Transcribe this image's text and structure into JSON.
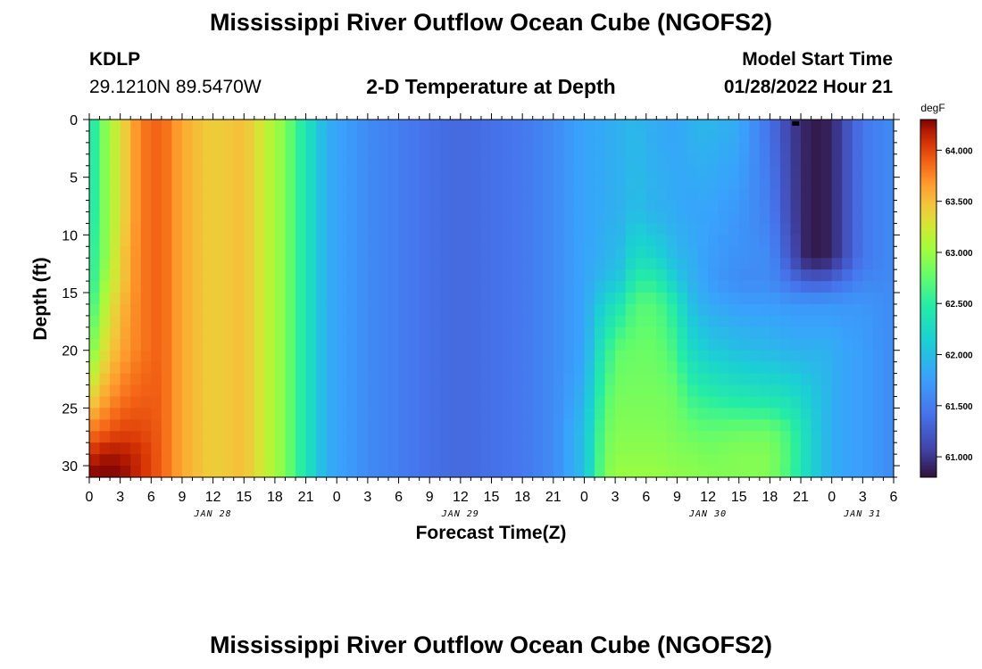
{
  "page": {
    "title": "Mississippi River Outflow Ocean Cube (NGOFS2)",
    "title_repeat": "Mississippi River Outflow Ocean Cube (NGOFS2)",
    "station_id": "KDLP",
    "station_coords": "29.1210N  89.5470W",
    "subtitle": "2-D Temperature at Depth",
    "model_start_label": "Model Start Time",
    "model_start_value": "01/28/2022 Hour 21"
  },
  "chart_data": {
    "type": "heatmap",
    "title": "2-D Temperature at Depth",
    "xlabel": "Forecast Time(Z)",
    "ylabel": "Depth (ft)",
    "colorbar_unit": "degF",
    "x_range_hours": [
      0,
      78
    ],
    "y_range": [
      0,
      31
    ],
    "y_ticks": [
      0,
      5,
      10,
      15,
      20,
      25,
      30
    ],
    "x_tick_labels": [
      "0",
      "3",
      "6",
      "9",
      "12",
      "15",
      "18",
      "21",
      "0",
      "3",
      "6",
      "9",
      "12",
      "15",
      "18",
      "21",
      "0",
      "3",
      "6",
      "9",
      "12",
      "15",
      "18",
      "21",
      "0",
      "3",
      "6"
    ],
    "date_labels": [
      {
        "label": "JAN 28",
        "hour": 12
      },
      {
        "label": "JAN 29",
        "hour": 36
      },
      {
        "label": "JAN 30",
        "hour": 60
      },
      {
        "label": "JAN 31",
        "hour": 75
      }
    ],
    "colorbar_ticks": [
      "61.000",
      "61.500",
      "62.000",
      "62.500",
      "63.000",
      "63.500",
      "64.000"
    ],
    "color_range": [
      60.8,
      64.3
    ],
    "profile_hours": [
      0,
      1.5,
      3,
      5,
      7,
      9,
      12,
      15,
      17,
      19,
      20,
      21,
      22,
      23,
      24,
      27,
      30,
      33,
      36,
      39,
      42,
      45,
      48,
      50,
      51.5,
      53,
      55,
      57,
      58,
      60,
      63,
      66,
      68,
      69,
      70,
      71,
      72,
      73,
      75,
      78
    ],
    "profile_depths": [
      0,
      8,
      12,
      14,
      16,
      20,
      24,
      27,
      29,
      31
    ],
    "temperature_degF": [
      [
        62.3,
        62.3,
        62.4,
        62.4,
        62.5,
        62.8,
        63.3,
        63.8,
        64.1,
        64.3
      ],
      [
        62.9,
        62.9,
        62.9,
        63.0,
        63.1,
        63.3,
        63.6,
        63.9,
        64.2,
        64.3
      ],
      [
        63.3,
        63.3,
        63.4,
        63.4,
        63.5,
        63.6,
        63.8,
        64.0,
        64.2,
        64.3
      ],
      [
        63.8,
        63.8,
        63.8,
        63.8,
        63.8,
        63.8,
        63.9,
        64.0,
        64.1,
        64.1
      ],
      [
        63.9,
        63.9,
        63.9,
        63.9,
        63.9,
        63.9,
        63.9,
        63.9,
        63.9,
        63.9
      ],
      [
        63.6,
        63.6,
        63.6,
        63.6,
        63.6,
        63.6,
        63.6,
        63.6,
        63.6,
        63.6
      ],
      [
        63.4,
        63.4,
        63.4,
        63.4,
        63.4,
        63.4,
        63.4,
        63.4,
        63.4,
        63.4
      ],
      [
        63.5,
        63.5,
        63.5,
        63.5,
        63.5,
        63.5,
        63.5,
        63.5,
        63.5,
        63.5
      ],
      [
        63.2,
        63.2,
        63.2,
        63.2,
        63.2,
        63.2,
        63.2,
        63.2,
        63.2,
        63.2
      ],
      [
        62.9,
        62.9,
        62.9,
        62.9,
        62.9,
        62.9,
        62.9,
        62.9,
        62.9,
        62.9
      ],
      [
        62.6,
        62.6,
        62.6,
        62.6,
        62.6,
        62.6,
        62.6,
        62.6,
        62.6,
        62.6
      ],
      [
        62.4,
        62.4,
        62.4,
        62.4,
        62.4,
        62.4,
        62.4,
        62.4,
        62.4,
        62.4
      ],
      [
        62.1,
        62.1,
        62.1,
        62.1,
        62.1,
        62.1,
        62.1,
        62.1,
        62.1,
        62.1
      ],
      [
        61.9,
        61.9,
        61.9,
        61.9,
        61.9,
        61.9,
        61.9,
        61.9,
        61.9,
        61.9
      ],
      [
        61.8,
        61.8,
        61.8,
        61.8,
        61.8,
        61.8,
        61.8,
        61.8,
        61.8,
        61.8
      ],
      [
        61.6,
        61.6,
        61.6,
        61.6,
        61.6,
        61.6,
        61.6,
        61.6,
        61.6,
        61.6
      ],
      [
        61.5,
        61.5,
        61.5,
        61.5,
        61.5,
        61.5,
        61.5,
        61.5,
        61.5,
        61.5
      ],
      [
        61.4,
        61.4,
        61.4,
        61.4,
        61.4,
        61.4,
        61.4,
        61.4,
        61.4,
        61.4
      ],
      [
        61.35,
        61.35,
        61.35,
        61.35,
        61.35,
        61.35,
        61.35,
        61.35,
        61.35,
        61.35
      ],
      [
        61.4,
        61.4,
        61.4,
        61.4,
        61.4,
        61.4,
        61.4,
        61.4,
        61.4,
        61.4
      ],
      [
        61.45,
        61.45,
        61.45,
        61.45,
        61.45,
        61.45,
        61.45,
        61.45,
        61.45,
        61.45
      ],
      [
        61.6,
        61.6,
        61.6,
        61.6,
        61.6,
        61.6,
        61.6,
        61.6,
        61.6,
        61.6
      ],
      [
        61.8,
        61.8,
        61.8,
        61.8,
        61.8,
        61.8,
        61.9,
        62.0,
        62.0,
        62.0
      ],
      [
        61.85,
        61.85,
        61.9,
        62.0,
        62.2,
        62.5,
        62.7,
        62.8,
        62.85,
        62.9
      ],
      [
        61.9,
        61.9,
        62.0,
        62.1,
        62.4,
        62.75,
        62.85,
        62.9,
        62.95,
        63.0
      ],
      [
        61.95,
        62.0,
        62.3,
        62.5,
        62.7,
        62.8,
        62.85,
        62.9,
        62.95,
        63.0
      ],
      [
        61.85,
        61.9,
        62.2,
        62.5,
        62.7,
        62.8,
        62.85,
        62.9,
        62.95,
        63.0
      ],
      [
        61.8,
        61.85,
        61.95,
        62.1,
        62.4,
        62.6,
        62.8,
        62.85,
        62.9,
        62.95
      ],
      [
        61.9,
        61.8,
        61.9,
        61.95,
        62.05,
        62.3,
        62.6,
        62.8,
        62.9,
        62.95
      ],
      [
        61.95,
        61.8,
        61.75,
        61.75,
        61.85,
        62.1,
        62.5,
        62.75,
        62.85,
        62.9
      ],
      [
        61.85,
        61.7,
        61.65,
        61.6,
        61.75,
        62.0,
        62.4,
        62.8,
        62.9,
        62.9
      ],
      [
        61.4,
        61.5,
        61.6,
        61.6,
        61.75,
        61.95,
        62.35,
        62.8,
        62.9,
        62.9
      ],
      [
        61.05,
        61.1,
        61.2,
        61.4,
        61.7,
        61.9,
        62.3,
        62.6,
        62.65,
        62.6
      ],
      [
        60.95,
        60.95,
        60.95,
        61.3,
        61.7,
        61.9,
        62.2,
        62.4,
        62.4,
        62.4
      ],
      [
        60.85,
        60.85,
        60.85,
        61.25,
        61.7,
        61.9,
        62.1,
        62.2,
        62.2,
        62.2
      ],
      [
        60.85,
        60.85,
        60.85,
        61.25,
        61.7,
        61.9,
        62.0,
        62.0,
        62.0,
        62.0
      ],
      [
        60.9,
        60.9,
        60.9,
        61.3,
        61.7,
        61.9,
        61.9,
        61.9,
        61.9,
        61.9
      ],
      [
        61.1,
        61.1,
        61.1,
        61.4,
        61.7,
        61.8,
        61.8,
        61.8,
        61.8,
        61.8
      ],
      [
        61.45,
        61.45,
        61.45,
        61.55,
        61.7,
        61.75,
        61.75,
        61.75,
        61.75,
        61.75
      ],
      [
        61.6,
        61.6,
        61.6,
        61.6,
        61.6,
        61.6,
        61.6,
        61.6,
        61.6,
        61.6
      ]
    ],
    "marker": {
      "hour": 68.5,
      "depth": 0.3
    }
  }
}
